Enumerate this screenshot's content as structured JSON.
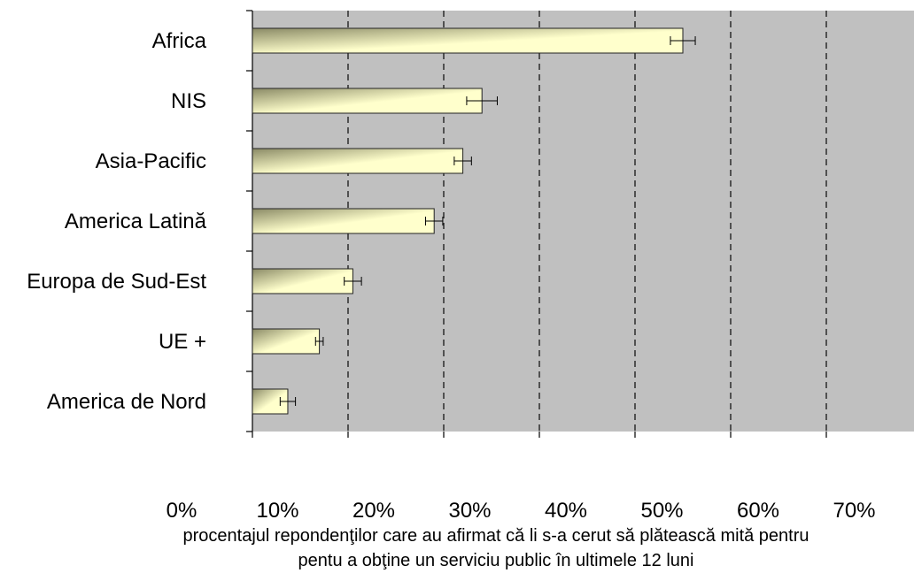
{
  "chart_data": {
    "type": "bar",
    "orientation": "horizontal",
    "categories": [
      "Africa",
      "NIS",
      "Asia-Pacific",
      "America Latină",
      "Europa de Sud-Est",
      "UE +",
      "America de Nord"
    ],
    "values": [
      45,
      24,
      22,
      19,
      10.5,
      7,
      3.7
    ],
    "errors": [
      1.3,
      1.6,
      0.9,
      0.9,
      0.9,
      0.4,
      0.8
    ],
    "xlabel_line1": "procentajul repondenţilor care au afirmat că li s-a cerut să plătească mită pentru",
    "xlabel_line2": "pentu a obţine un serviciu public în ultimele 12 luni",
    "tick_labels": [
      "0%",
      "10%",
      "20%",
      "30%",
      "40%",
      "50%",
      "60%",
      "70%"
    ],
    "xlim": [
      0,
      70
    ],
    "grid": "vertical-dashed",
    "colors": {
      "plot_background": "#c0c0c0",
      "bar_dark": "#8a8a66",
      "bar_light": "#ffffcc",
      "bar_stroke": "#222222",
      "grid": "#222222"
    }
  }
}
